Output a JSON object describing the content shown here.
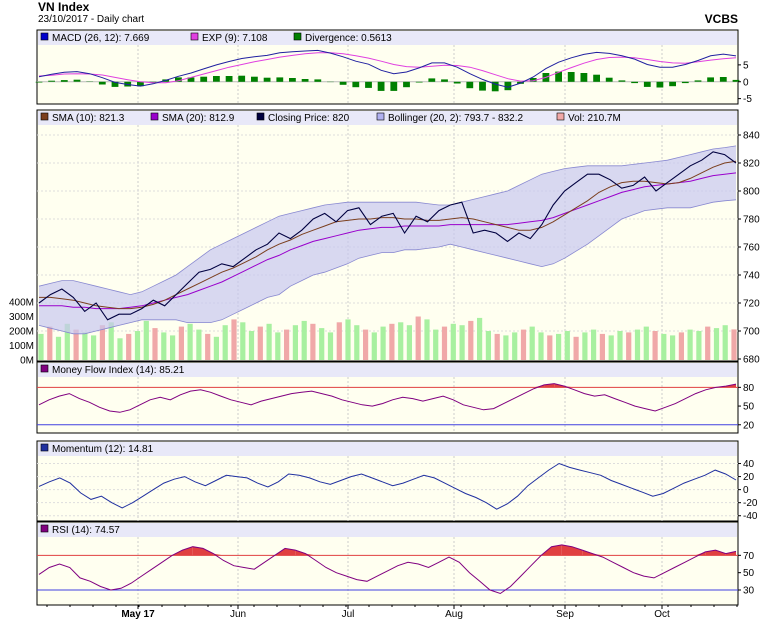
{
  "header": {
    "title": "VN Index",
    "subtitle": "23/10/2017 - Daily chart",
    "brand": "VCBS"
  },
  "x_axis": {
    "labels": [
      "May 17",
      "Jun",
      "Jul",
      "Aug",
      "Sep",
      "Oct"
    ],
    "bold_label": "May 17"
  },
  "colors": {
    "panel_bg": "#fffff0",
    "legend_bg": "#e8e8f8",
    "price": "#000040",
    "sma10": "#7b3f1e",
    "sma20": "#9900cc",
    "bollinger_fill": "#c8c8f0",
    "bollinger_line": "#8888d0",
    "vol_up": "#a8f0a0",
    "vol_down": "#f0a8a8",
    "macd": "#2020a0",
    "exp": "#e040e0",
    "divergence": "#008000",
    "mfi": "#800080",
    "momentum": "#2030a0",
    "rsi": "#800080",
    "overbought": "#e04040",
    "oversold": "#4040e0"
  },
  "chart_data": [
    {
      "panel": "macd",
      "type": "line",
      "legend": [
        {
          "label": "MACD (26, 12): 7.669",
          "color": "#0000cc"
        },
        {
          "label": "EXP (9): 7.108",
          "color": "#e040e0"
        },
        {
          "label": "Divergence: 0.5613",
          "color": "#008000"
        }
      ],
      "y_ticks": [
        "5",
        "0",
        "-5"
      ],
      "ylim": [
        -6,
        10
      ],
      "series": [
        {
          "key": "macd",
          "values": [
            1.5,
            2.2,
            2.8,
            3.0,
            2.4,
            1.2,
            -0.2,
            -0.8,
            -1.3,
            -0.6,
            0.4,
            1.6,
            2.6,
            3.8,
            5.0,
            6.0,
            6.9,
            7.4,
            7.8,
            8.6,
            8.9,
            9.1,
            9.3,
            8.5,
            7.4,
            6.1,
            5.2,
            3.4,
            2.4,
            2.9,
            4.1,
            5.6,
            5.6,
            4.3,
            2.4,
            0.7,
            -0.7,
            -1.6,
            -0.4,
            1.4,
            3.9,
            5.8,
            7.1,
            8.1,
            8.7,
            8.4,
            7.7,
            6.7,
            5.1,
            4.3,
            4.3,
            5.1,
            6.3,
            7.7,
            8.2,
            7.669
          ]
        },
        {
          "key": "exp",
          "values": [
            1.7,
            1.9,
            2.3,
            2.4,
            2.3,
            2.0,
            1.3,
            0.6,
            0.0,
            -0.3,
            -0.3,
            0.3,
            1.3,
            2.3,
            3.3,
            4.3,
            5.1,
            5.9,
            6.6,
            7.3,
            7.8,
            8.3,
            8.6,
            8.6,
            8.3,
            7.7,
            7.0,
            6.1,
            5.1,
            4.5,
            4.3,
            4.6,
            4.9,
            4.8,
            4.3,
            3.3,
            2.1,
            0.9,
            0.2,
            0.3,
            1.3,
            2.8,
            4.2,
            5.5,
            6.6,
            7.2,
            7.3,
            7.1,
            6.6,
            6.0,
            5.6,
            5.5,
            5.9,
            6.4,
            6.8,
            7.108
          ]
        },
        {
          "key": "divergence",
          "values": [
            -0.2,
            0.3,
            0.5,
            0.6,
            0.1,
            -0.8,
            -1.5,
            -1.4,
            -1.3,
            -0.3,
            0.7,
            1.3,
            1.3,
            1.5,
            1.7,
            1.7,
            1.8,
            1.5,
            1.2,
            1.3,
            1.1,
            0.8,
            0.7,
            -0.1,
            -0.9,
            -1.6,
            -1.8,
            -2.7,
            -2.7,
            -1.6,
            -0.2,
            1.0,
            0.7,
            -0.5,
            -1.9,
            -2.6,
            -2.8,
            -2.5,
            -0.6,
            1.1,
            2.6,
            3.0,
            2.9,
            2.6,
            2.1,
            1.2,
            0.4,
            -0.4,
            -1.5,
            -1.7,
            -1.3,
            -0.4,
            0.4,
            1.3,
            1.4,
            0.5613
          ]
        }
      ]
    },
    {
      "panel": "price",
      "type": "line",
      "legend": [
        {
          "label": "SMA (10): 821.3",
          "color": "#7b3f1e"
        },
        {
          "label": "SMA (20): 812.9",
          "color": "#9900cc"
        },
        {
          "label": "Closing Price: 820",
          "color": "#000040"
        },
        {
          "label": "Bollinger (20, 2): 793.7 - 832.2",
          "color": "#b0b0f0"
        },
        {
          "label": "Vol: 210.7M",
          "color": "#f0a8a8"
        }
      ],
      "y_ticks": [
        "840",
        "820",
        "800",
        "780",
        "760",
        "740",
        "720",
        "700",
        "680"
      ],
      "ylim": [
        680,
        845
      ],
      "vol_ticks": [
        "400M",
        "300M",
        "200M",
        "100M",
        "0M"
      ],
      "vol_lim": [
        0,
        400
      ],
      "series": [
        {
          "key": "close",
          "values": [
            720,
            726,
            730,
            724,
            714,
            720,
            708,
            712,
            712,
            716,
            722,
            718,
            726,
            734,
            742,
            744,
            748,
            746,
            752,
            758,
            762,
            770,
            766,
            772,
            780,
            784,
            778,
            786,
            788,
            776,
            782,
            784,
            770,
            782,
            778,
            786,
            790,
            792,
            770,
            772,
            770,
            764,
            770,
            766,
            776,
            790,
            800,
            806,
            812,
            812,
            808,
            802,
            804,
            810,
            800,
            806,
            812,
            818,
            822,
            828,
            826,
            820
          ]
        },
        {
          "key": "sma10",
          "values": [
            724,
            724,
            723,
            722,
            720,
            718,
            717,
            716,
            716,
            717,
            719,
            722,
            726,
            730,
            734,
            738,
            742,
            745,
            749,
            753,
            758,
            762,
            765,
            769,
            772,
            775,
            778,
            779,
            780,
            780,
            781,
            781,
            780,
            780,
            779,
            779,
            780,
            781,
            780,
            778,
            776,
            774,
            772,
            772,
            774,
            778,
            783,
            788,
            793,
            799,
            803,
            806,
            807,
            807,
            806,
            805,
            806,
            809,
            813,
            817,
            820,
            821.3
          ]
        },
        {
          "key": "sma20",
          "values": [
            718,
            718,
            718,
            717,
            717,
            716,
            716,
            716,
            717,
            718,
            720,
            722,
            724,
            726,
            729,
            732,
            735,
            739,
            743,
            747,
            751,
            754,
            758,
            761,
            764,
            766,
            768,
            770,
            772,
            773,
            774,
            774,
            775,
            775,
            775,
            775,
            776,
            776,
            776,
            776,
            776,
            776,
            777,
            778,
            779,
            781,
            784,
            787,
            790,
            793,
            796,
            799,
            801,
            803,
            804,
            805,
            806,
            807,
            809,
            811,
            812,
            812.9
          ]
        },
        {
          "key": "boll_upper",
          "values": [
            732,
            734,
            736,
            736,
            734,
            732,
            730,
            728,
            726,
            728,
            732,
            736,
            740,
            746,
            752,
            758,
            762,
            766,
            770,
            774,
            778,
            782,
            784,
            786,
            788,
            790,
            791,
            792,
            792,
            792,
            792,
            792,
            792,
            792,
            791,
            790,
            790,
            792,
            794,
            796,
            798,
            800,
            804,
            808,
            812,
            814,
            816,
            817,
            818,
            818,
            818,
            818,
            819,
            820,
            821,
            822,
            824,
            826,
            828,
            830,
            831,
            832.2
          ]
        },
        {
          "key": "boll_lower",
          "values": [
            704,
            702,
            700,
            698,
            698,
            700,
            702,
            704,
            706,
            708,
            708,
            708,
            708,
            706,
            706,
            706,
            708,
            712,
            716,
            720,
            724,
            726,
            732,
            736,
            740,
            742,
            745,
            748,
            752,
            754,
            756,
            756,
            758,
            758,
            759,
            760,
            762,
            760,
            758,
            756,
            754,
            752,
            750,
            748,
            746,
            748,
            752,
            757,
            762,
            768,
            774,
            780,
            783,
            786,
            787,
            788,
            788,
            788,
            790,
            792,
            793,
            793.7
          ]
        },
        {
          "key": "volume",
          "values": [
            180,
            230,
            160,
            250,
            210,
            190,
            170,
            240,
            260,
            150,
            180,
            200,
            270,
            220,
            190,
            170,
            230,
            250,
            210,
            180,
            160,
            240,
            280,
            260,
            200,
            230,
            250,
            190,
            210,
            240,
            270,
            250,
            220,
            190,
            260,
            280,
            240,
            210,
            190,
            230,
            250,
            260,
            240,
            300,
            280,
            210,
            230,
            250,
            240,
            270,
            290,
            200,
            180,
            170,
            190,
            210,
            230,
            190,
            170,
            180,
            200,
            160,
            190,
            210,
            180,
            170,
            200,
            190,
            210,
            230,
            200,
            180,
            170,
            190,
            210,
            200,
            230,
            220,
            240,
            210.7
          ]
        }
      ]
    },
    {
      "panel": "mfi",
      "type": "line",
      "legend": [
        {
          "label": "Money Flow Index (14): 85.21",
          "color": "#800080"
        }
      ],
      "y_ticks": [
        "80",
        "50",
        "20"
      ],
      "overbought_label": "80",
      "oversold_label": "20",
      "ylim": [
        10,
        95
      ],
      "series": [
        {
          "key": "mfi",
          "values": [
            52,
            60,
            66,
            70,
            62,
            56,
            48,
            42,
            40,
            44,
            52,
            60,
            64,
            60,
            68,
            74,
            76,
            72,
            66,
            60,
            56,
            52,
            58,
            62,
            66,
            70,
            72,
            74,
            70,
            66,
            60,
            56,
            52,
            50,
            54,
            60,
            64,
            62,
            58,
            62,
            66,
            60,
            52,
            48,
            44,
            46,
            54,
            62,
            70,
            78,
            84,
            86,
            82,
            76,
            70,
            66,
            68,
            62,
            56,
            50,
            46,
            42,
            48,
            54,
            62,
            70,
            76,
            80,
            82,
            85.21
          ]
        }
      ]
    },
    {
      "panel": "momentum",
      "type": "line",
      "legend": [
        {
          "label": "Momentum (12): 14.81",
          "color": "#2030a0"
        }
      ],
      "y_ticks": [
        "40",
        "20",
        "0",
        "-20",
        "-40"
      ],
      "ylim": [
        -45,
        50
      ],
      "series": [
        {
          "key": "momentum",
          "values": [
            5,
            12,
            18,
            10,
            -5,
            -15,
            -10,
            -20,
            -28,
            -20,
            -10,
            0,
            10,
            16,
            20,
            12,
            6,
            14,
            22,
            20,
            18,
            10,
            4,
            12,
            24,
            22,
            18,
            12,
            8,
            14,
            20,
            24,
            18,
            12,
            6,
            10,
            16,
            22,
            18,
            10,
            2,
            -6,
            -12,
            -20,
            -30,
            -22,
            -10,
            6,
            18,
            30,
            40,
            34,
            30,
            26,
            22,
            14,
            8,
            2,
            -4,
            -10,
            -6,
            2,
            10,
            16,
            22,
            30,
            24,
            14.81
          ]
        }
      ]
    },
    {
      "panel": "rsi",
      "type": "line",
      "legend": [
        {
          "label": "RSI (14): 74.57",
          "color": "#800080"
        }
      ],
      "y_ticks": [
        "70",
        "50",
        "30"
      ],
      "overbought_label": "70",
      "oversold_label": "30",
      "ylim": [
        15,
        90
      ],
      "series": [
        {
          "key": "rsi",
          "values": [
            48,
            56,
            60,
            56,
            44,
            40,
            34,
            30,
            32,
            38,
            46,
            54,
            62,
            70,
            76,
            80,
            78,
            72,
            64,
            58,
            56,
            54,
            62,
            70,
            78,
            76,
            72,
            64,
            56,
            50,
            46,
            42,
            40,
            46,
            52,
            58,
            62,
            60,
            56,
            62,
            68,
            62,
            50,
            40,
            30,
            26,
            34,
            46,
            58,
            70,
            80,
            82,
            80,
            76,
            72,
            68,
            62,
            56,
            50,
            46,
            44,
            50,
            56,
            62,
            68,
            74,
            76,
            72,
            74.57
          ]
        }
      ]
    }
  ]
}
